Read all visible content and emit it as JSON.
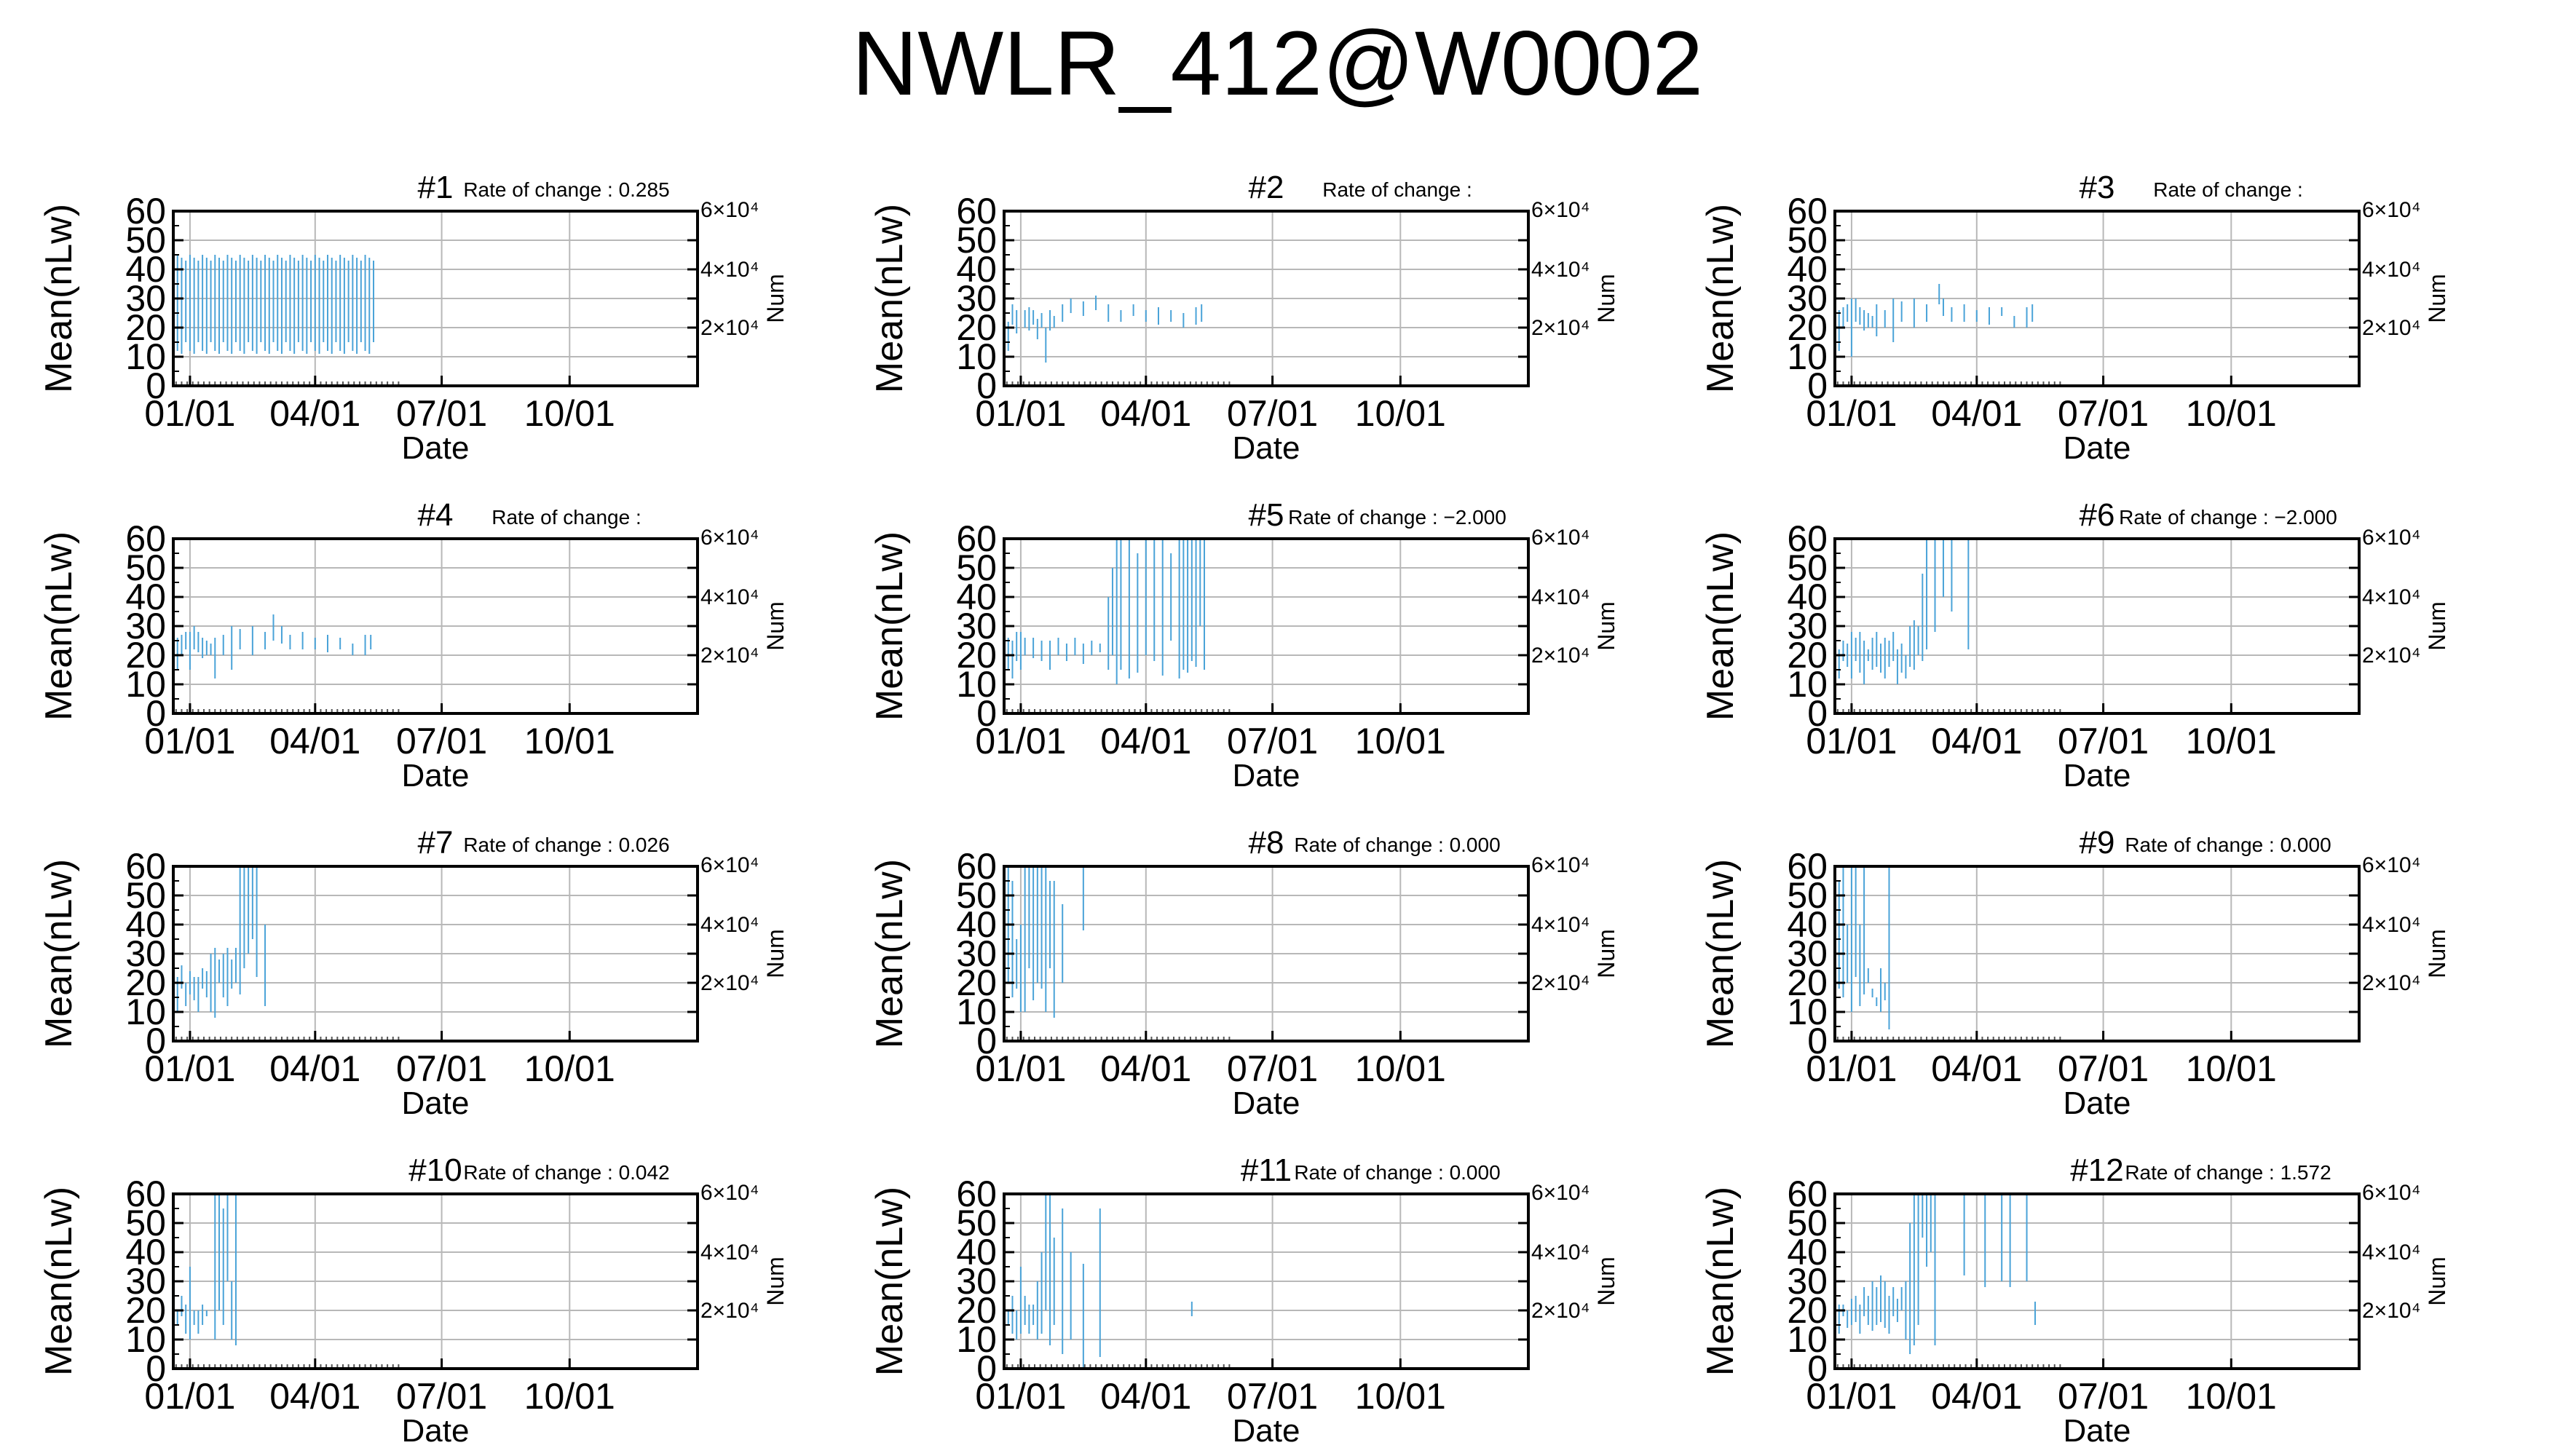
{
  "title": "NWLR_412@W0002",
  "colors": {
    "series": "#4aa3d8",
    "grid": "#b8b8b8",
    "axis": "#000000"
  },
  "panel_common": {
    "ylabel": "Mean(nLw)",
    "xlabel": "Date",
    "y2label": "Num",
    "yticks": [
      "0",
      "10",
      "20",
      "30",
      "40",
      "50",
      "60"
    ],
    "xticks": [
      "01/01",
      "04/01",
      "07/01",
      "10/01"
    ],
    "y2ticks": [
      "6×10⁴",
      "4×10⁴",
      "2×10⁴"
    ],
    "rate_prefix": "Rate of change :"
  },
  "chart_data": [
    {
      "type": "line",
      "title": "#1",
      "rate": "0.285",
      "xlabel": "Date",
      "ylabel": "Mean(nLw)",
      "ylim": [
        0,
        60
      ],
      "xlim": [
        "01/01",
        "12/31"
      ],
      "pattern": {
        "start": -12,
        "end": 133,
        "step": 3,
        "lo": [
          15,
          12,
          11
        ],
        "hi": [
          43,
          45,
          44
        ]
      }
    },
    {
      "type": "line",
      "title": "#2",
      "rate": "",
      "xlabel": "Date",
      "ylabel": "Mean(nLw)",
      "ylim": [
        0,
        60
      ],
      "xlim": [
        "01/01",
        "12/31"
      ],
      "segments": [
        [
          -12,
          22,
          27
        ],
        [
          -9,
          12,
          22
        ],
        [
          -6,
          21,
          28
        ],
        [
          -3,
          18,
          26
        ],
        [
          3,
          20,
          26
        ],
        [
          6,
          19,
          27
        ],
        [
          9,
          21,
          26
        ],
        [
          12,
          16,
          23
        ],
        [
          15,
          20,
          25
        ],
        [
          18,
          8,
          20
        ],
        [
          21,
          19,
          26
        ],
        [
          24,
          20,
          24
        ],
        [
          30,
          22,
          28
        ],
        [
          36,
          25,
          30
        ],
        [
          45,
          24,
          29
        ],
        [
          54,
          26,
          31
        ],
        [
          63,
          22,
          28
        ],
        [
          72,
          22,
          26
        ],
        [
          81,
          24,
          28
        ],
        [
          90,
          22,
          26
        ],
        [
          99,
          21,
          27
        ],
        [
          108,
          22,
          26
        ],
        [
          117,
          20,
          25
        ],
        [
          126,
          21,
          27
        ],
        [
          130,
          22,
          28
        ]
      ]
    },
    {
      "type": "line",
      "title": "#3",
      "rate": "",
      "xlabel": "Date",
      "ylabel": "Mean(nLw)",
      "ylim": [
        0,
        60
      ],
      "xlim": [
        "01/01",
        "12/31"
      ],
      "segments": [
        [
          -12,
          18,
          27
        ],
        [
          -9,
          12,
          26
        ],
        [
          -6,
          20,
          27
        ],
        [
          -3,
          22,
          28
        ],
        [
          0,
          10,
          30
        ],
        [
          3,
          22,
          30
        ],
        [
          6,
          21,
          27
        ],
        [
          9,
          19,
          26
        ],
        [
          12,
          20,
          25
        ],
        [
          15,
          20,
          24
        ],
        [
          18,
          17,
          28
        ],
        [
          24,
          20,
          26
        ],
        [
          30,
          15,
          30
        ],
        [
          36,
          22,
          29
        ],
        [
          45,
          20,
          30
        ],
        [
          54,
          22,
          28
        ],
        [
          63,
          28,
          35
        ],
        [
          66,
          24,
          30
        ],
        [
          72,
          22,
          27
        ],
        [
          81,
          22,
          28
        ],
        [
          90,
          22,
          26
        ],
        [
          99,
          21,
          27
        ],
        [
          108,
          24,
          27
        ],
        [
          117,
          20,
          24
        ],
        [
          126,
          20,
          27
        ],
        [
          130,
          22,
          28
        ]
      ]
    },
    {
      "type": "line",
      "title": "#4",
      "rate": "",
      "xlabel": "Date",
      "ylabel": "Mean(nLw)",
      "ylim": [
        0,
        60
      ],
      "xlim": [
        "01/01",
        "12/31"
      ],
      "segments": [
        [
          -12,
          18,
          27
        ],
        [
          -9,
          15,
          26
        ],
        [
          -6,
          20,
          27
        ],
        [
          -3,
          22,
          28
        ],
        [
          0,
          15,
          28
        ],
        [
          3,
          22,
          30
        ],
        [
          6,
          21,
          28
        ],
        [
          9,
          19,
          26
        ],
        [
          12,
          20,
          25
        ],
        [
          15,
          20,
          24
        ],
        [
          18,
          12,
          26
        ],
        [
          24,
          20,
          27
        ],
        [
          30,
          15,
          30
        ],
        [
          36,
          22,
          29
        ],
        [
          45,
          20,
          30
        ],
        [
          54,
          22,
          28
        ],
        [
          60,
          25,
          34
        ],
        [
          66,
          24,
          30
        ],
        [
          72,
          22,
          27
        ],
        [
          81,
          22,
          28
        ],
        [
          90,
          22,
          26
        ],
        [
          99,
          21,
          27
        ],
        [
          108,
          22,
          26
        ],
        [
          117,
          20,
          24
        ],
        [
          126,
          20,
          27
        ],
        [
          130,
          22,
          27
        ]
      ]
    },
    {
      "type": "line",
      "title": "#5",
      "rate": "−2.000",
      "xlabel": "Date",
      "ylabel": "Mean(nLw)",
      "ylim": [
        0,
        60
      ],
      "xlim": [
        "01/01",
        "12/31"
      ],
      "segments": [
        [
          -12,
          18,
          27
        ],
        [
          -9,
          15,
          26
        ],
        [
          -6,
          12,
          25
        ],
        [
          -3,
          18,
          28
        ],
        [
          0,
          15,
          28
        ],
        [
          3,
          20,
          26
        ],
        [
          9,
          19,
          26
        ],
        [
          15,
          18,
          25
        ],
        [
          21,
          15,
          25
        ],
        [
          27,
          20,
          26
        ],
        [
          33,
          18,
          24
        ],
        [
          39,
          20,
          26
        ],
        [
          45,
          17,
          24
        ],
        [
          51,
          20,
          25
        ],
        [
          57,
          21,
          24
        ],
        [
          63,
          15,
          40
        ],
        [
          66,
          20,
          50
        ],
        [
          69,
          10,
          60
        ],
        [
          72,
          15,
          60
        ],
        [
          78,
          12,
          60
        ],
        [
          84,
          14,
          55
        ],
        [
          90,
          20,
          60
        ],
        [
          96,
          18,
          60
        ],
        [
          102,
          13,
          60
        ],
        [
          108,
          25,
          55
        ],
        [
          114,
          12,
          60
        ],
        [
          117,
          15,
          60
        ],
        [
          120,
          14,
          60
        ],
        [
          123,
          18,
          60
        ],
        [
          126,
          16,
          60
        ],
        [
          129,
          30,
          60
        ],
        [
          132,
          15,
          60
        ]
      ]
    },
    {
      "type": "line",
      "title": "#6",
      "rate": "−2.000",
      "xlabel": "Date",
      "ylabel": "Mean(nLw)",
      "ylim": [
        0,
        60
      ],
      "xlim": [
        "01/01",
        "12/31"
      ],
      "segments": [
        [
          -12,
          15,
          28
        ],
        [
          -9,
          12,
          22
        ],
        [
          -6,
          18,
          25
        ],
        [
          -3,
          16,
          24
        ],
        [
          0,
          12,
          28
        ],
        [
          3,
          18,
          26
        ],
        [
          6,
          14,
          28
        ],
        [
          9,
          10,
          25
        ],
        [
          12,
          18,
          22
        ],
        [
          15,
          15,
          26
        ],
        [
          18,
          16,
          28
        ],
        [
          21,
          14,
          24
        ],
        [
          24,
          12,
          26
        ],
        [
          27,
          16,
          25
        ],
        [
          30,
          18,
          28
        ],
        [
          33,
          10,
          22
        ],
        [
          36,
          14,
          24
        ],
        [
          39,
          12,
          20
        ],
        [
          42,
          16,
          30
        ],
        [
          45,
          15,
          32
        ],
        [
          48,
          20,
          30
        ],
        [
          51,
          18,
          48
        ],
        [
          54,
          22,
          60
        ],
        [
          60,
          28,
          60
        ],
        [
          66,
          40,
          60
        ],
        [
          72,
          35,
          60
        ],
        [
          84,
          22,
          60
        ]
      ]
    },
    {
      "type": "line",
      "title": "#7",
      "rate": "0.026",
      "xlabel": "Date",
      "ylabel": "Mean(nLw)",
      "ylim": [
        0,
        60
      ],
      "xlim": [
        "01/01",
        "12/31"
      ],
      "segments": [
        [
          -12,
          15,
          25
        ],
        [
          -9,
          10,
          22
        ],
        [
          -6,
          18,
          26
        ],
        [
          -3,
          12,
          20
        ],
        [
          0,
          16,
          24
        ],
        [
          3,
          14,
          22
        ],
        [
          6,
          10,
          22
        ],
        [
          9,
          18,
          25
        ],
        [
          12,
          15,
          24
        ],
        [
          15,
          10,
          30
        ],
        [
          18,
          8,
          32
        ],
        [
          21,
          20,
          28
        ],
        [
          24,
          15,
          30
        ],
        [
          27,
          12,
          32
        ],
        [
          30,
          18,
          28
        ],
        [
          33,
          20,
          32
        ],
        [
          36,
          16,
          60
        ],
        [
          39,
          25,
          60
        ],
        [
          42,
          30,
          60
        ],
        [
          45,
          35,
          60
        ],
        [
          48,
          22,
          60
        ],
        [
          54,
          12,
          40
        ]
      ]
    },
    {
      "type": "line",
      "title": "#8",
      "rate": "0.000",
      "xlabel": "Date",
      "ylabel": "Mean(nLw)",
      "ylim": [
        0,
        60
      ],
      "xlim": [
        "01/01",
        "12/31"
      ],
      "segments": [
        [
          -12,
          10,
          40
        ],
        [
          -9,
          20,
          60
        ],
        [
          -6,
          15,
          55
        ],
        [
          -3,
          18,
          35
        ],
        [
          0,
          10,
          40
        ],
        [
          3,
          10,
          60
        ],
        [
          6,
          25,
          60
        ],
        [
          9,
          14,
          60
        ],
        [
          12,
          20,
          60
        ],
        [
          15,
          18,
          60
        ],
        [
          18,
          10,
          60
        ],
        [
          21,
          25,
          55
        ],
        [
          24,
          8,
          55
        ],
        [
          30,
          20,
          47
        ],
        [
          45,
          38,
          60
        ]
      ]
    },
    {
      "type": "line",
      "title": "#9",
      "rate": "0.000",
      "xlabel": "Date",
      "ylabel": "Mean(nLw)",
      "ylim": [
        0,
        60
      ],
      "xlim": [
        "01/01",
        "12/31"
      ],
      "segments": [
        [
          -12,
          10,
          60
        ],
        [
          -9,
          18,
          55
        ],
        [
          -6,
          15,
          60
        ],
        [
          -3,
          20,
          40
        ],
        [
          0,
          10,
          60
        ],
        [
          3,
          22,
          60
        ],
        [
          6,
          12,
          40
        ],
        [
          9,
          16,
          60
        ],
        [
          12,
          20,
          25
        ],
        [
          15,
          15,
          18
        ],
        [
          18,
          12,
          15
        ],
        [
          21,
          10,
          25
        ],
        [
          24,
          14,
          20
        ],
        [
          27,
          4,
          60
        ]
      ]
    },
    {
      "type": "line",
      "title": "#10",
      "rate": "0.042",
      "xlabel": "Date",
      "ylabel": "Mean(nLw)",
      "ylim": [
        0,
        60
      ],
      "xlim": [
        "01/01",
        "12/31"
      ],
      "segments": [
        [
          -12,
          10,
          30
        ],
        [
          -9,
          15,
          20
        ],
        [
          -6,
          18,
          25
        ],
        [
          -3,
          12,
          22
        ],
        [
          0,
          10,
          35
        ],
        [
          3,
          15,
          20
        ],
        [
          6,
          12,
          20
        ],
        [
          9,
          15,
          22
        ],
        [
          12,
          18,
          20
        ],
        [
          18,
          10,
          60
        ],
        [
          21,
          20,
          60
        ],
        [
          24,
          15,
          55
        ],
        [
          27,
          30,
          60
        ],
        [
          30,
          10,
          30
        ],
        [
          33,
          8,
          60
        ]
      ]
    },
    {
      "type": "line",
      "title": "#11",
      "rate": "0.000",
      "xlabel": "Date",
      "ylabel": "Mean(nLw)",
      "ylim": [
        0,
        60
      ],
      "xlim": [
        "01/01",
        "12/31"
      ],
      "segments": [
        [
          -12,
          10,
          22
        ],
        [
          -9,
          15,
          20
        ],
        [
          -6,
          12,
          25
        ],
        [
          -3,
          10,
          20
        ],
        [
          0,
          12,
          35
        ],
        [
          3,
          15,
          25
        ],
        [
          6,
          12,
          22
        ],
        [
          9,
          15,
          22
        ],
        [
          12,
          10,
          30
        ],
        [
          15,
          12,
          40
        ],
        [
          18,
          20,
          60
        ],
        [
          21,
          8,
          60
        ],
        [
          24,
          15,
          45
        ],
        [
          30,
          5,
          55
        ],
        [
          36,
          10,
          40
        ],
        [
          45,
          0,
          36
        ],
        [
          57,
          4,
          55
        ],
        [
          123,
          18,
          23
        ]
      ]
    },
    {
      "type": "line",
      "title": "#12",
      "rate": "1.572",
      "xlabel": "Date",
      "ylabel": "Mean(nLw)",
      "ylim": [
        0,
        60
      ],
      "xlim": [
        "01/01",
        "12/31"
      ],
      "segments": [
        [
          -12,
          15,
          25
        ],
        [
          -9,
          12,
          22
        ],
        [
          -6,
          18,
          22
        ],
        [
          -3,
          14,
          20
        ],
        [
          0,
          15,
          24
        ],
        [
          3,
          16,
          25
        ],
        [
          6,
          12,
          22
        ],
        [
          9,
          18,
          28
        ],
        [
          12,
          15,
          25
        ],
        [
          15,
          13,
          30
        ],
        [
          18,
          15,
          28
        ],
        [
          21,
          16,
          32
        ],
        [
          24,
          14,
          30
        ],
        [
          27,
          12,
          25
        ],
        [
          30,
          18,
          28
        ],
        [
          33,
          16,
          24
        ],
        [
          36,
          20,
          28
        ],
        [
          39,
          10,
          30
        ],
        [
          42,
          5,
          50
        ],
        [
          45,
          8,
          60
        ],
        [
          48,
          15,
          60
        ],
        [
          51,
          45,
          60
        ],
        [
          54,
          35,
          60
        ],
        [
          57,
          40,
          60
        ],
        [
          60,
          8,
          60
        ],
        [
          81,
          32,
          60
        ],
        [
          96,
          28,
          60
        ],
        [
          108,
          30,
          60
        ],
        [
          114,
          28,
          60
        ],
        [
          126,
          30,
          60
        ],
        [
          132,
          15,
          23
        ]
      ]
    }
  ]
}
